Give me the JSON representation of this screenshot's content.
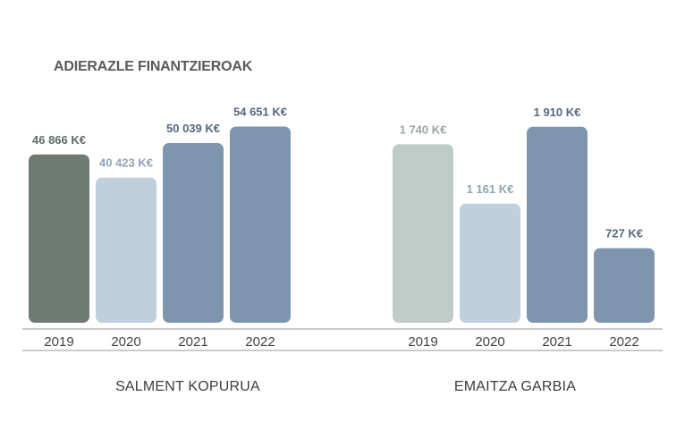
{
  "title": "ADIERAZLE FINANTZIEROAK",
  "chart_data": [
    {
      "type": "bar",
      "title": "",
      "caption": "SALMENT KOPURUA",
      "categories": [
        "2019",
        "2020",
        "2021",
        "2022"
      ],
      "values": [
        46866,
        40423,
        50039,
        54651
      ],
      "value_labels": [
        "46 866 K€",
        "40 423 K€",
        "50 039 K€",
        "54 651 K€"
      ],
      "bar_colors": [
        "#6e7b73",
        "#c0cfdc",
        "#7f95ad",
        "#7f95ad"
      ],
      "label_colors": [
        "#5f6b64",
        "#8ea4b8",
        "#54697f",
        "#54697f"
      ],
      "ylim": [
        0,
        60000
      ]
    },
    {
      "type": "bar",
      "title": "",
      "caption": "EMAITZA GARBIA",
      "categories": [
        "2019",
        "2020",
        "2021",
        "2022"
      ],
      "values": [
        1740,
        1161,
        1910,
        727
      ],
      "value_labels": [
        "1 740 K€",
        "1 161 K€",
        "1 910 K€",
        "727 K€"
      ],
      "bar_colors": [
        "#bfcbc6",
        "#c0cfdc",
        "#7f95ad",
        "#7f95ad"
      ],
      "label_colors": [
        "#9aa8a2",
        "#8ea4b8",
        "#54697f",
        "#54697f"
      ],
      "ylim": [
        0,
        2100
      ]
    }
  ]
}
